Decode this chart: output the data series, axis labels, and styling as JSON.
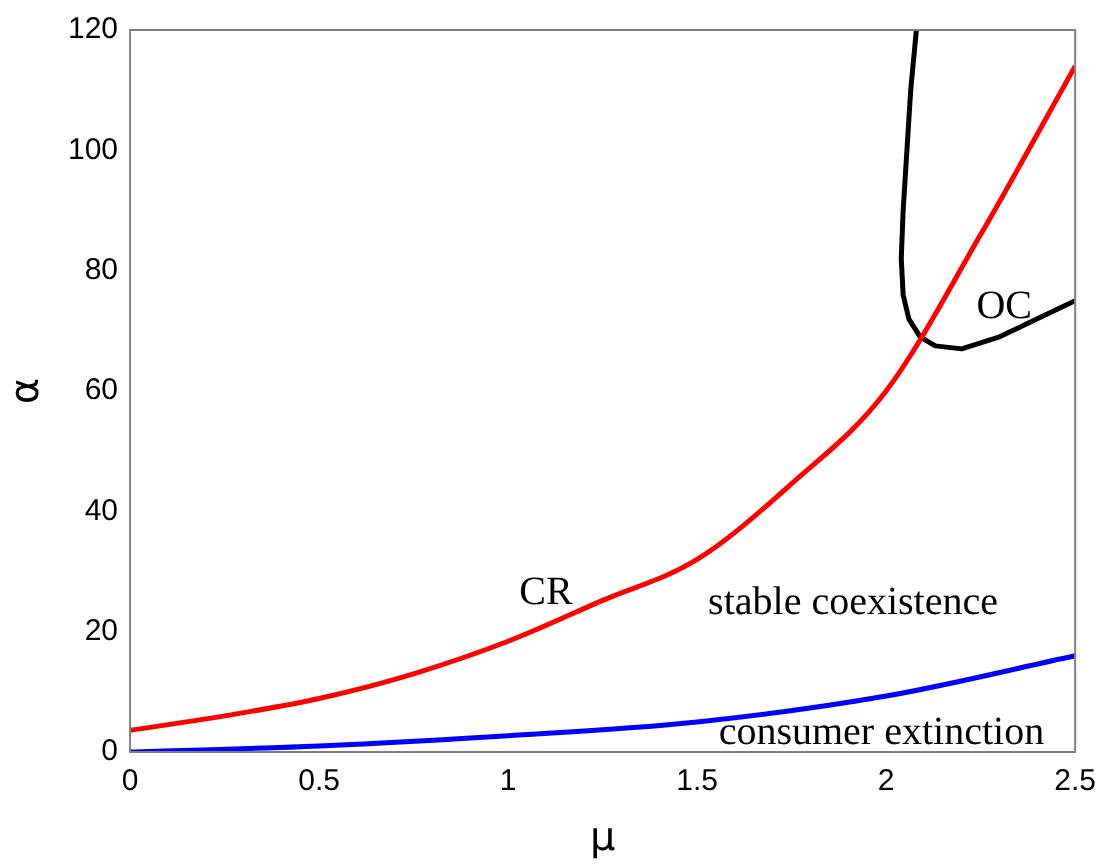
{
  "chart_data": {
    "type": "line",
    "xlabel": "μ",
    "ylabel": "α",
    "xlim": [
      0,
      2.5
    ],
    "ylim": [
      0,
      120
    ],
    "xticks": [
      0,
      0.5,
      1,
      1.5,
      2,
      2.5
    ],
    "yticks": [
      0,
      20,
      40,
      60,
      80,
      100,
      120
    ],
    "grid": false,
    "legend": false,
    "marker": "none",
    "line_style": "solid",
    "series": [
      {
        "color": "#ff0000",
        "x": [
          0,
          0.25,
          0.5,
          0.75,
          1,
          1.25,
          1.5,
          1.75,
          2,
          2.25,
          2.5
        ],
        "values": [
          3.6,
          6,
          8.9,
          13,
          18.4,
          25.2,
          32,
          44.6,
          60,
          86,
          114
        ]
      },
      {
        "color": "#0000ff",
        "x": [
          0,
          0.5,
          1,
          1.5,
          2,
          2.5
        ],
        "values": [
          0,
          1,
          2.7,
          5,
          9.3,
          16
        ]
      },
      {
        "color": "#000000",
        "x": [
          2.08,
          2.065,
          2.055,
          2.045,
          2.04,
          2.045,
          2.06,
          2.09,
          2.13,
          2.2,
          2.3,
          2.4,
          2.5
        ],
        "values": [
          120,
          110,
          100,
          90,
          82,
          76,
          72,
          69,
          67.5,
          67,
          69,
          72,
          75
        ]
      }
    ],
    "annotations": [
      "CR",
      "OC",
      "stable coexistence",
      "consumer extinction"
    ]
  }
}
